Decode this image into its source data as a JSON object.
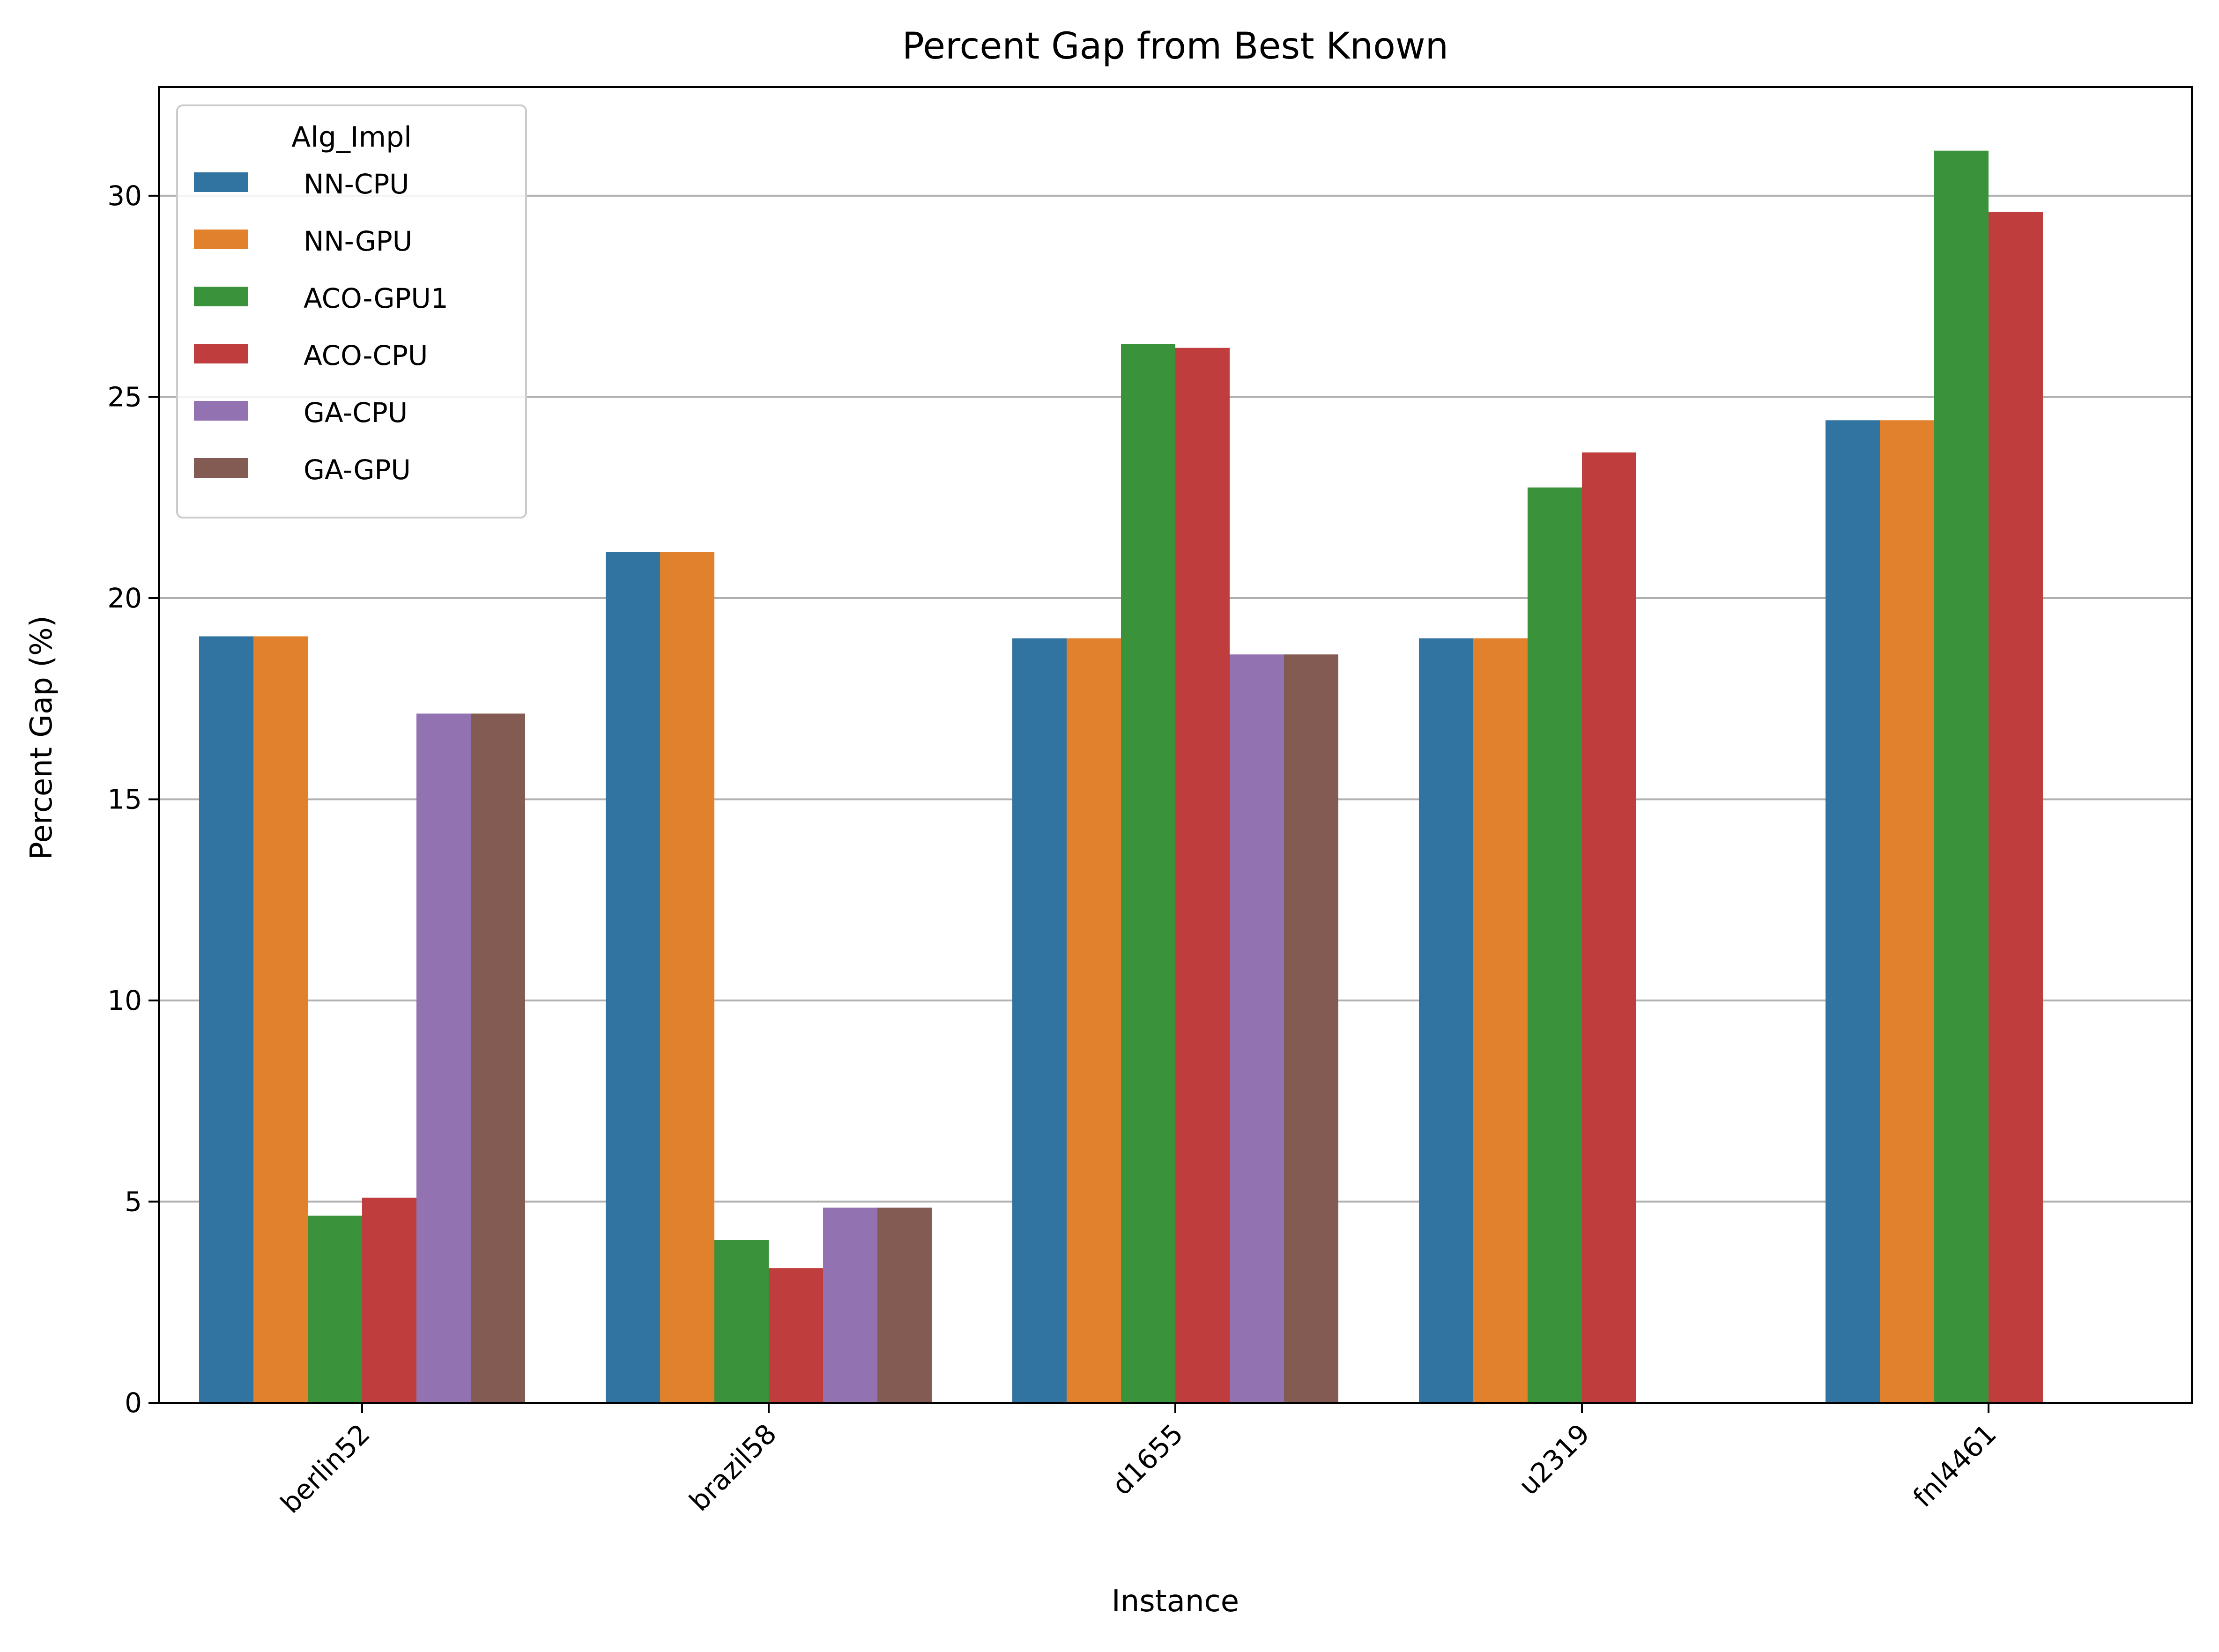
{
  "chart_data": {
    "type": "bar",
    "title": "Percent Gap from Best Known",
    "xlabel": "Instance",
    "ylabel": "Percent Gap (%)",
    "ylim": [
      0,
      32.7
    ],
    "yticks": [
      0,
      5,
      10,
      15,
      20,
      25,
      30
    ],
    "grid": "horizontal",
    "legend": {
      "title": "Alg_Impl",
      "position": "top-left"
    },
    "categories": [
      "berlin52",
      "brazil58",
      "d1655",
      "u2319",
      "fnl4461"
    ],
    "series": [
      {
        "name": "NN-CPU",
        "color": "#3274a1",
        "values": [
          19.05,
          21.15,
          19.0,
          19.0,
          24.42
        ]
      },
      {
        "name": "NN-GPU",
        "color": "#e1812c",
        "values": [
          19.05,
          21.15,
          19.0,
          19.0,
          24.42
        ]
      },
      {
        "name": "ACO-GPU1",
        "color": "#3a923a",
        "values": [
          4.65,
          4.05,
          26.32,
          22.75,
          31.12
        ]
      },
      {
        "name": "ACO-CPU",
        "color": "#c03d3e",
        "values": [
          5.1,
          3.35,
          26.22,
          23.62,
          29.6
        ]
      },
      {
        "name": "GA-CPU",
        "color": "#9372b2",
        "values": [
          17.13,
          4.85,
          18.6,
          null,
          null
        ]
      },
      {
        "name": "GA-GPU",
        "color": "#845b53",
        "values": [
          17.13,
          4.85,
          18.6,
          null,
          null
        ]
      }
    ]
  }
}
